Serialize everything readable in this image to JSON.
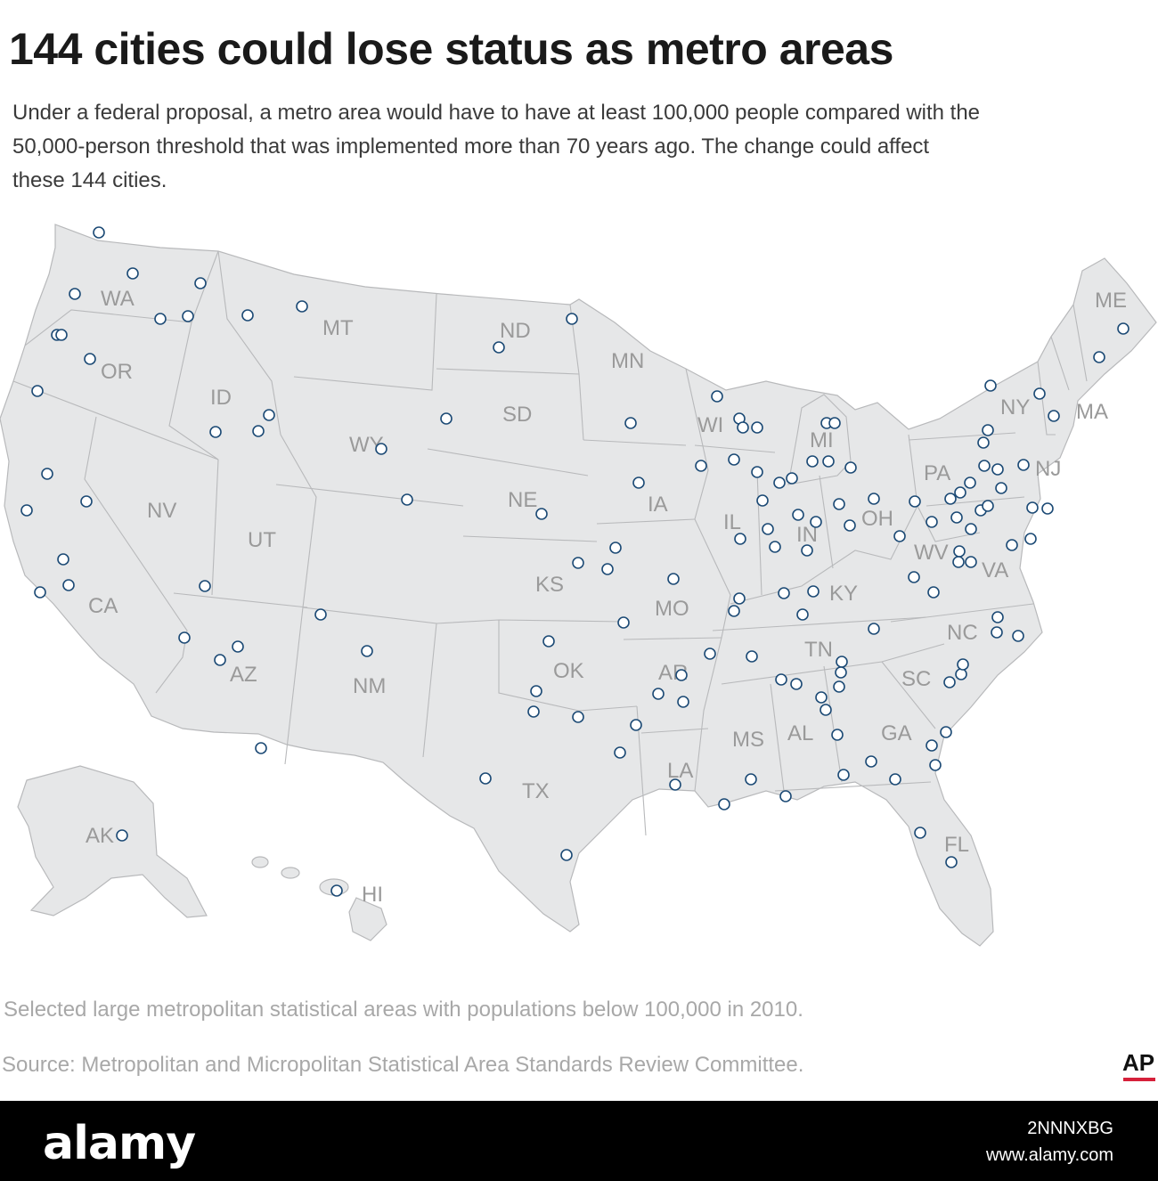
{
  "title": "144 cities could lose status as metro areas",
  "subtitle": "Under a federal proposal, a metro area would have to have at least 100,000 people compared with the 50,000-person threshold that was implemented more than 70 years ago. The change could affect these 144 cities.",
  "note": "Selected large metropolitan statistical areas with populations below 100,000 in 2010.",
  "source": "Source: Metropolitan and Micropolitan Statistical Area Standards Review Committee.",
  "credit": "AP",
  "watermark": {
    "brand": "alamy",
    "image_id": "2NNNXBG",
    "url": "www.alamy.com"
  },
  "colors": {
    "land": "#e6e7e8",
    "border": "#b8b9bb",
    "marker": "#1c4a75",
    "label": "#9a9a9a",
    "accent": "#d6203a"
  },
  "state_labels": [
    "WA",
    "OR",
    "CA",
    "NV",
    "ID",
    "MT",
    "WY",
    "UT",
    "AZ",
    "NM",
    "ND",
    "SD",
    "NE",
    "KS",
    "OK",
    "TX",
    "MN",
    "IA",
    "MO",
    "AR",
    "LA",
    "WI",
    "IL",
    "MI",
    "IN",
    "OH",
    "KY",
    "TN",
    "MS",
    "AL",
    "GA",
    "SC",
    "NC",
    "VA",
    "WV",
    "PA",
    "NY",
    "NJ",
    "ME",
    "MA",
    "FL",
    "AK",
    "HI"
  ]
}
